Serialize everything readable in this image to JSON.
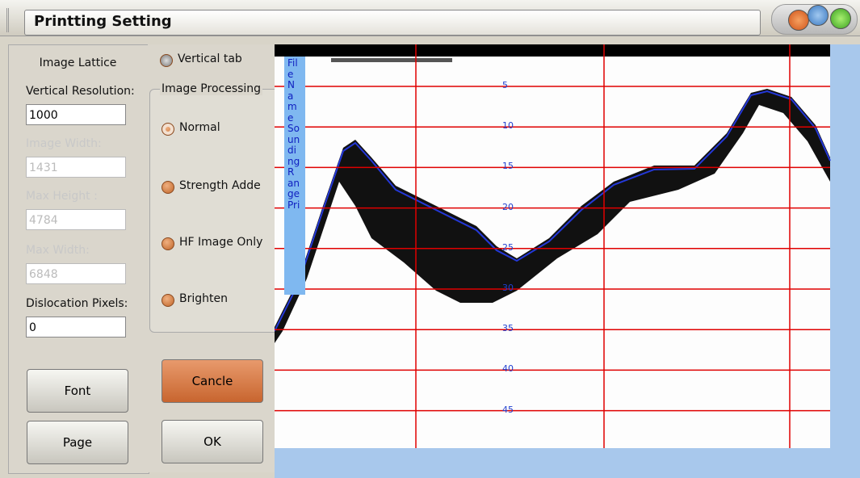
{
  "window": {
    "title": "Printting Setting"
  },
  "left_panel": {
    "heading": "Image Lattice",
    "fields": [
      {
        "label": "Vertical Resolution:",
        "value": "1000",
        "enabled": true
      },
      {
        "label": "Image Width:",
        "value": "1431",
        "enabled": false
      },
      {
        "label": "Max Height :",
        "value": "4784",
        "enabled": false
      },
      {
        "label": "Max Width:",
        "value": "6848",
        "enabled": false
      },
      {
        "label": "Dislocation Pixels:",
        "value": "0",
        "enabled": true
      }
    ],
    "buttons": [
      "Font",
      "Page"
    ]
  },
  "middle_panel": {
    "checkbox": "Vertical tab",
    "group_title": "Image Processing",
    "options": [
      "Normal",
      "Strength Adde",
      "HF Image Only",
      "Brighten"
    ],
    "buttons": [
      "Cancle",
      "OK"
    ]
  },
  "echogram": {
    "side_label_lines": [
      "Fil",
      "e",
      "N",
      "a",
      "m",
      "e",
      "So",
      "un",
      "di",
      "ng",
      "R",
      "an",
      "ge",
      "Pri"
    ],
    "depth_labels": [
      "5",
      "10",
      "15",
      "20",
      "25",
      "30",
      "35",
      "40",
      "45"
    ]
  }
}
